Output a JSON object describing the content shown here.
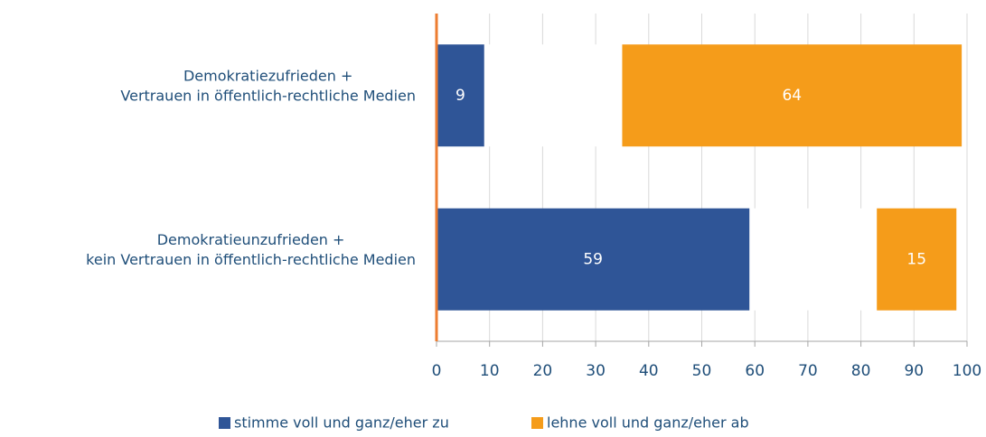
{
  "chart_data": {
    "type": "stacked_bar_horizontal",
    "categories": [
      [
        "Demokratiezufrieden +",
        "Vertrauen in öffentlich-rechtliche Medien"
      ],
      [
        "Demokratieunzufrieden +",
        "kein Vertrauen in öffentlich-rechtliche Medien"
      ]
    ],
    "series": [
      {
        "name": "stimme voll und ganz/eher zu",
        "color": "#2f5597",
        "values": [
          9,
          59
        ]
      },
      {
        "color": "#ffffff",
        "values": [
          26,
          24
        ]
      },
      {
        "name": "lehne voll und ganz/eher ab",
        "color": "#f59c1a",
        "values": [
          64,
          15
        ]
      }
    ],
    "xlim": [
      0,
      100
    ],
    "xticks": [
      0,
      10,
      20,
      30,
      40,
      50,
      60,
      70,
      80,
      90,
      100
    ],
    "grid": true
  }
}
